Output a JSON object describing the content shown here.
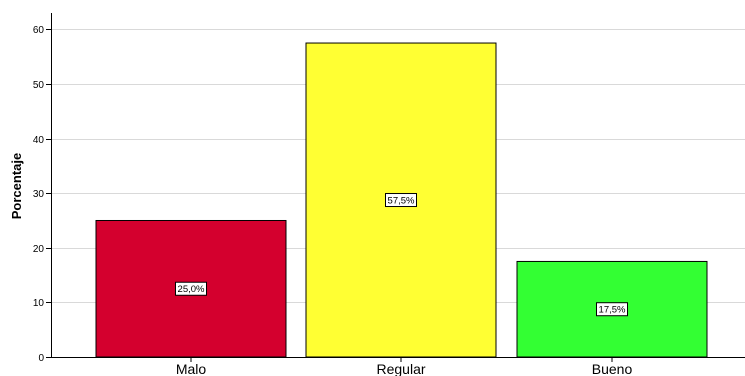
{
  "chart_data": {
    "type": "bar",
    "title": "",
    "xlabel": "",
    "ylabel": "Porcentaje",
    "ylim": [
      0,
      63
    ],
    "yticks": [
      0,
      10,
      20,
      30,
      40,
      50,
      60
    ],
    "grid": "horizontal",
    "categories": [
      "Malo",
      "Regular",
      "Bueno"
    ],
    "values": [
      25.0,
      57.5,
      17.5
    ],
    "data_labels": [
      "25,0%",
      "57,5%",
      "17,5%"
    ],
    "colors": [
      "#d4002e",
      "#ffff33",
      "#33ff33"
    ]
  }
}
